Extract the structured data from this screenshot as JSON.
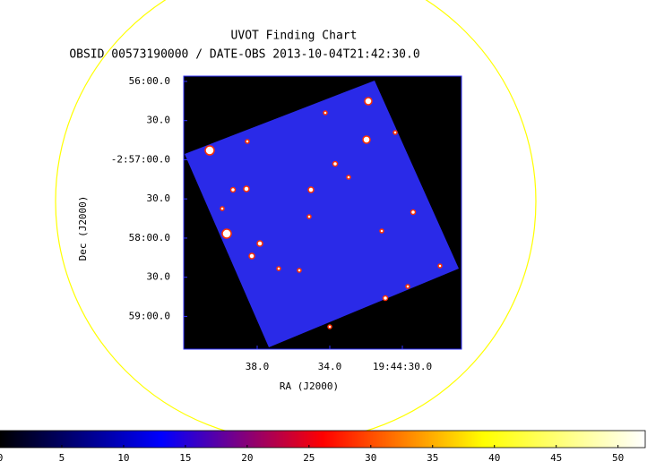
{
  "chart_data": {
    "type": "image",
    "title": "UVOT Finding Chart",
    "subtitle": "OBSID 00573190000 / DATE-OBS 2013-10-04T21:42:30.0",
    "xlabel": "RA (J2000)",
    "ylabel": "Dec (J2000)",
    "xlim": [
      42.05,
      26.74
    ],
    "xticks": [
      {
        "value": 38,
        "label": "38.0"
      },
      {
        "value": 34,
        "label": "34.0"
      },
      {
        "value": 30,
        "label": "19:44:30.0"
      }
    ],
    "ylim": [
      -2.9903,
      -2.9322
    ],
    "yticks": [
      {
        "value": -2.98333,
        "label": "59:00.0"
      },
      {
        "value": -2.975,
        "label": "30.0"
      },
      {
        "value": -2.96667,
        "label": "58:00.0"
      },
      {
        "value": -2.95833,
        "label": "30.0"
      },
      {
        "value": -2.95,
        "label": "-2:57:00.0"
      },
      {
        "value": -2.94167,
        "label": "30.0"
      },
      {
        "value": -2.93333,
        "label": "56:00.0"
      }
    ],
    "clim": [
      0,
      52.2
    ],
    "cticks": [
      0,
      5,
      10,
      15,
      20,
      25,
      30,
      35,
      40,
      45,
      50
    ],
    "colormap": [
      "#000000",
      "#0000ff",
      "#ff0000",
      "#ffff00",
      "#ffffff"
    ]
  }
}
